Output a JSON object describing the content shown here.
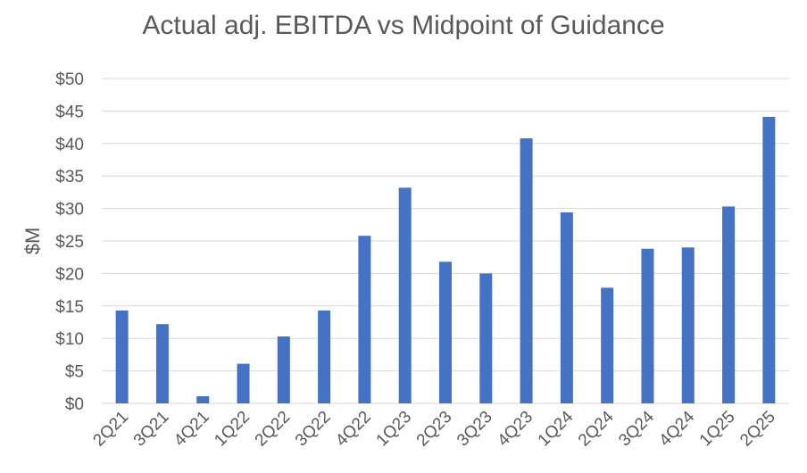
{
  "chart_data": {
    "type": "bar",
    "title": "Actual adj. EBITDA vs Midpoint of Guidance",
    "xlabel": "",
    "ylabel": "$M",
    "ylim": [
      0,
      50
    ],
    "yticks": [
      0,
      5,
      10,
      15,
      20,
      25,
      30,
      35,
      40,
      45,
      50
    ],
    "ytick_labels": [
      "$0",
      "$5",
      "$10",
      "$15",
      "$20",
      "$25",
      "$30",
      "$35",
      "$40",
      "$45",
      "$50"
    ],
    "grid": true,
    "legend": "none",
    "categories": [
      "2Q21",
      "3Q21",
      "4Q21",
      "1Q22",
      "2Q22",
      "3Q22",
      "4Q22",
      "1Q23",
      "2Q23",
      "3Q23",
      "4Q23",
      "1Q24",
      "2Q24",
      "3Q24",
      "4Q24",
      "1Q25",
      "2Q25"
    ],
    "values": [
      14.3,
      12.2,
      1.1,
      6.1,
      10.3,
      14.3,
      25.8,
      33.2,
      21.8,
      20.0,
      40.8,
      29.4,
      17.8,
      23.8,
      24.0,
      30.3,
      44.1
    ],
    "bar_color": "#4472c4",
    "grid_color": "#d9d9d9",
    "text_color": "#595959"
  }
}
